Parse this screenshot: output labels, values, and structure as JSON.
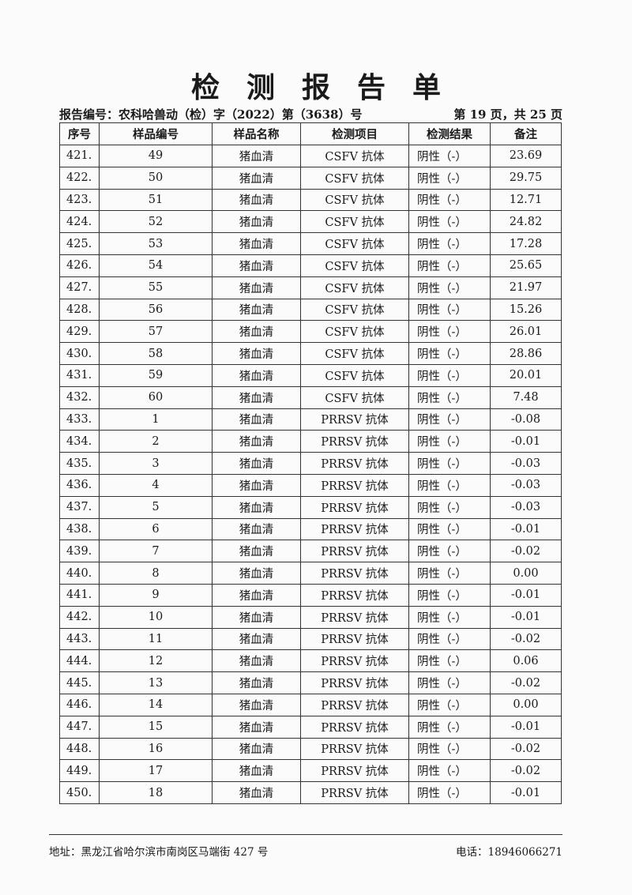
{
  "title": "检测报告单",
  "report_no": "报告编号：农科哈兽动（检）字（2022）第（3638）号",
  "page_no": "第 19 页，共 25 页",
  "table": {
    "headers": [
      "序号",
      "样品编号",
      "样品名称",
      "检测项目",
      "检测结果",
      "备注"
    ],
    "rows": [
      [
        "421.",
        "49",
        "猪血清",
        "CSFV 抗体",
        "阴性（-）",
        "23.69"
      ],
      [
        "422.",
        "50",
        "猪血清",
        "CSFV 抗体",
        "阴性（-）",
        "29.75"
      ],
      [
        "423.",
        "51",
        "猪血清",
        "CSFV 抗体",
        "阴性（-）",
        "12.71"
      ],
      [
        "424.",
        "52",
        "猪血清",
        "CSFV 抗体",
        "阴性（-）",
        "24.82"
      ],
      [
        "425.",
        "53",
        "猪血清",
        "CSFV 抗体",
        "阴性（-）",
        "17.28"
      ],
      [
        "426.",
        "54",
        "猪血清",
        "CSFV 抗体",
        "阴性（-）",
        "25.65"
      ],
      [
        "427.",
        "55",
        "猪血清",
        "CSFV 抗体",
        "阴性（-）",
        "21.97"
      ],
      [
        "428.",
        "56",
        "猪血清",
        "CSFV 抗体",
        "阴性（-）",
        "15.26"
      ],
      [
        "429.",
        "57",
        "猪血清",
        "CSFV 抗体",
        "阴性（-）",
        "26.01"
      ],
      [
        "430.",
        "58",
        "猪血清",
        "CSFV 抗体",
        "阴性（-）",
        "28.86"
      ],
      [
        "431.",
        "59",
        "猪血清",
        "CSFV 抗体",
        "阴性（-）",
        "20.01"
      ],
      [
        "432.",
        "60",
        "猪血清",
        "CSFV 抗体",
        "阴性（-）",
        "7.48"
      ],
      [
        "433.",
        "1",
        "猪血清",
        "PRRSV 抗体",
        "阴性（-）",
        "-0.08"
      ],
      [
        "434.",
        "2",
        "猪血清",
        "PRRSV 抗体",
        "阴性（-）",
        "-0.01"
      ],
      [
        "435.",
        "3",
        "猪血清",
        "PRRSV 抗体",
        "阴性（-）",
        "-0.03"
      ],
      [
        "436.",
        "4",
        "猪血清",
        "PRRSV 抗体",
        "阴性（-）",
        "-0.03"
      ],
      [
        "437.",
        "5",
        "猪血清",
        "PRRSV 抗体",
        "阴性（-）",
        "-0.03"
      ],
      [
        "438.",
        "6",
        "猪血清",
        "PRRSV 抗体",
        "阴性（-）",
        "-0.01"
      ],
      [
        "439.",
        "7",
        "猪血清",
        "PRRSV 抗体",
        "阴性（-）",
        "-0.02"
      ],
      [
        "440.",
        "8",
        "猪血清",
        "PRRSV 抗体",
        "阴性（-）",
        "0.00"
      ],
      [
        "441.",
        "9",
        "猪血清",
        "PRRSV 抗体",
        "阴性（-）",
        "-0.01"
      ],
      [
        "442.",
        "10",
        "猪血清",
        "PRRSV 抗体",
        "阴性（-）",
        "-0.01"
      ],
      [
        "443.",
        "11",
        "猪血清",
        "PRRSV 抗体",
        "阴性（-）",
        "-0.02"
      ],
      [
        "444.",
        "12",
        "猪血清",
        "PRRSV 抗体",
        "阴性（-）",
        "0.06"
      ],
      [
        "445.",
        "13",
        "猪血清",
        "PRRSV 抗体",
        "阴性（-）",
        "-0.02"
      ],
      [
        "446.",
        "14",
        "猪血清",
        "PRRSV 抗体",
        "阴性（-）",
        "0.00"
      ],
      [
        "447.",
        "15",
        "猪血清",
        "PRRSV 抗体",
        "阴性（-）",
        "-0.01"
      ],
      [
        "448.",
        "16",
        "猪血清",
        "PRRSV 抗体",
        "阴性（-）",
        "-0.02"
      ],
      [
        "449.",
        "17",
        "猪血清",
        "PRRSV 抗体",
        "阴性（-）",
        "-0.02"
      ],
      [
        "450.",
        "18",
        "猪血清",
        "PRRSV 抗体",
        "阴性（-）",
        "-0.01"
      ]
    ]
  },
  "footer": {
    "address": "地址：黑龙江省哈尔滨市南岗区马端街 427 号",
    "phone": "电话：18946066271"
  }
}
